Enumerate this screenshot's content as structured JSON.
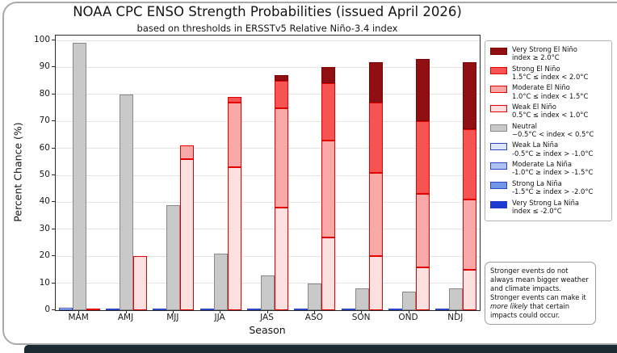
{
  "frame": {
    "card_border_color": "#a9a9a9",
    "bottom_bar_color": "#1b2b31"
  },
  "chart_data": {
    "type": "bar",
    "stacked": true,
    "grouped": true,
    "title": "NOAA CPC ENSO Strength Probabilities (issued April 2026)",
    "subtitle": "based on thresholds in ERSSTv5 Relative Niño-3.4 index",
    "xlabel": "Season",
    "ylabel": "Percent Chance (%)",
    "ylim": [
      0,
      101.8
    ],
    "yticks": [
      0,
      10,
      20,
      30,
      40,
      50,
      60,
      70,
      80,
      90,
      100
    ],
    "grid": "horizontal",
    "legend_position": "right",
    "categories": [
      "MAM",
      "AMJ",
      "MJJ",
      "JJA",
      "JAS",
      "ASO",
      "SON",
      "OND",
      "NDJ"
    ],
    "groups": [
      {
        "name": "La Niña",
        "series": [
          {
            "name": "Weak La Niña",
            "fill": "#dee6fa",
            "edge": "#2b46c8",
            "values": [
              1,
              0,
              0,
              0,
              0,
              0,
              0,
              0,
              0
            ]
          },
          {
            "name": "Moderate La Niña",
            "fill": "#b0c4f4",
            "edge": "#2b46c8",
            "values": [
              0,
              0,
              0,
              0,
              0,
              0,
              0,
              0,
              0
            ]
          },
          {
            "name": "Strong La Niña",
            "fill": "#7195e8",
            "edge": "#2b46c8",
            "values": [
              0,
              0,
              0,
              0,
              0,
              0,
              0,
              0,
              0
            ]
          },
          {
            "name": "Very Strong La Niña",
            "fill": "#1d39cf",
            "edge": "#1d39cf",
            "values": [
              0,
              0,
              0,
              0,
              0,
              0,
              0,
              0,
              0
            ]
          }
        ]
      },
      {
        "name": "Neutral",
        "series": [
          {
            "name": "Neutral",
            "fill": "#c9c9c9",
            "edge": "#888888",
            "values": [
              99,
              80,
              39,
              21,
              13,
              10,
              8,
              7,
              8
            ]
          }
        ]
      },
      {
        "name": "El Niño",
        "series": [
          {
            "name": "Weak El Niño",
            "fill": "#fcdfdf",
            "edge": "#e50000",
            "values": [
              0,
              20,
              56,
              53,
              38,
              27,
              20,
              16,
              15
            ]
          },
          {
            "name": "Moderate El Niño",
            "fill": "#f9a8a8",
            "edge": "#e50000",
            "values": [
              0,
              0,
              5,
              24,
              37,
              36,
              31,
              27,
              26
            ]
          },
          {
            "name": "Strong El Niño",
            "fill": "#f65353",
            "edge": "#e50000",
            "values": [
              0,
              0,
              0,
              2,
              10,
              21,
              26,
              27,
              26
            ]
          },
          {
            "name": "Very Strong El Niño",
            "fill": "#8f0f12",
            "edge": "#800000",
            "values": [
              0,
              0,
              0,
              0,
              2,
              6,
              15,
              23,
              25
            ]
          }
        ]
      }
    ]
  },
  "legend": {
    "entries": [
      {
        "label": "Very Strong El Niño",
        "threshold": "index ≥ 2.0°C",
        "fill": "#8f0f12",
        "edge": "#800000"
      },
      {
        "label": "Strong El Niño",
        "threshold": "1.5°C ≤ index < 2.0°C",
        "fill": "#f65353",
        "edge": "#e50000"
      },
      {
        "label": "Moderate El Niño",
        "threshold": "1.0°C ≤ index < 1.5°C",
        "fill": "#f9a8a8",
        "edge": "#e50000"
      },
      {
        "label": "Weak El Niño",
        "threshold": "0.5°C ≤ index < 1.0°C",
        "fill": "#fcdfdf",
        "edge": "#e50000"
      },
      {
        "label": "Neutral",
        "threshold": "−0.5°C < index < 0.5°C",
        "fill": "#c9c9c9",
        "edge": "#888888"
      },
      {
        "label": "Weak La Niña",
        "threshold": "-0.5°C ≥ index > -1.0°C",
        "fill": "#dee6fa",
        "edge": "#2b46c8"
      },
      {
        "label": "Moderate La Niña",
        "threshold": "-1.0°C ≥ index > -1.5°C",
        "fill": "#b0c4f4",
        "edge": "#2b46c8"
      },
      {
        "label": "Strong La Niña",
        "threshold": "-1.5°C ≥ index > -2.0°C",
        "fill": "#7195e8",
        "edge": "#2b46c8"
      },
      {
        "label": "Very Strong La Niña",
        "threshold": "index ≤ -2.0°C",
        "fill": "#1d39cf",
        "edge": "#1d39cf"
      }
    ]
  },
  "note": {
    "text_before": "Stronger events do not always mean bigger weather and climate impacts. Stronger events can make it ",
    "text_italic": "more likely",
    "text_after": " that certain impacts could occur."
  }
}
